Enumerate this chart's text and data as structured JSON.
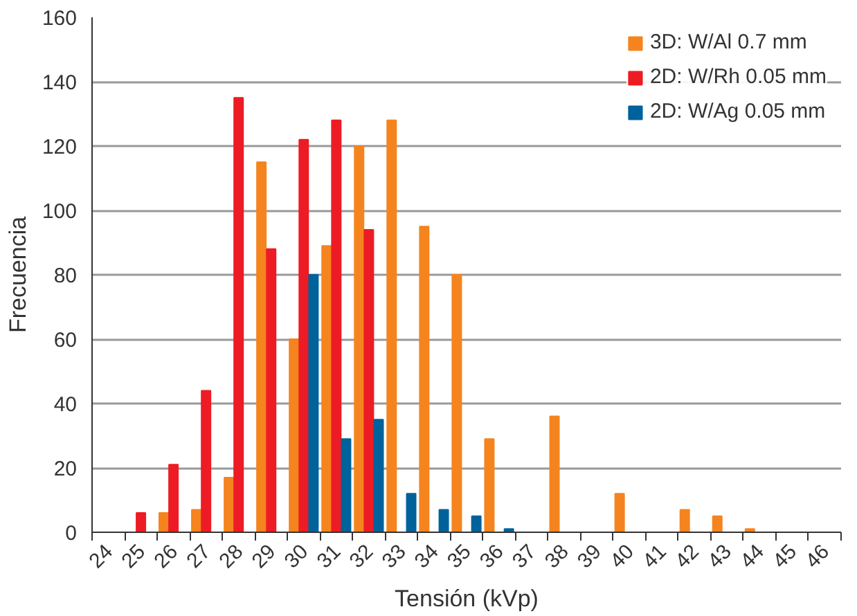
{
  "chart_data": {
    "type": "bar",
    "xlabel": "Tensión (kVp)",
    "ylabel": "Frecuencia",
    "categories": [
      "24",
      "25",
      "26",
      "27",
      "28",
      "29",
      "30",
      "31",
      "32",
      "33",
      "34",
      "35",
      "36",
      "37",
      "38",
      "39",
      "40",
      "41",
      "42",
      "43",
      "44",
      "45",
      "46"
    ],
    "series": [
      {
        "name": "3D: W/Al 0.7 mm",
        "color": "#f5841f",
        "values": [
          0,
          0,
          6,
          7,
          17,
          115,
          60,
          89,
          120,
          128,
          95,
          80,
          29,
          0,
          36,
          0,
          12,
          0,
          7,
          5,
          1,
          0,
          0
        ]
      },
      {
        "name": "2D: W/Rh 0.05 mm",
        "color": "#ed1c24",
        "values": [
          0,
          6,
          21,
          44,
          135,
          88,
          122,
          128,
          94,
          0,
          0,
          0,
          0,
          0,
          0,
          0,
          0,
          0,
          0,
          0,
          0,
          0,
          0
        ]
      },
      {
        "name": "2D: W/Ag 0.05 mm",
        "color": "#00629b",
        "values": [
          0,
          0,
          0,
          0,
          0,
          0,
          80,
          29,
          35,
          12,
          7,
          5,
          1,
          0,
          0,
          0,
          0,
          0,
          0,
          0,
          0,
          0,
          0
        ]
      }
    ],
    "ylim": [
      0,
      160
    ],
    "yticks": [
      0,
      20,
      40,
      60,
      80,
      100,
      120,
      140,
      160
    ],
    "grid": "y",
    "legend": "top right"
  }
}
